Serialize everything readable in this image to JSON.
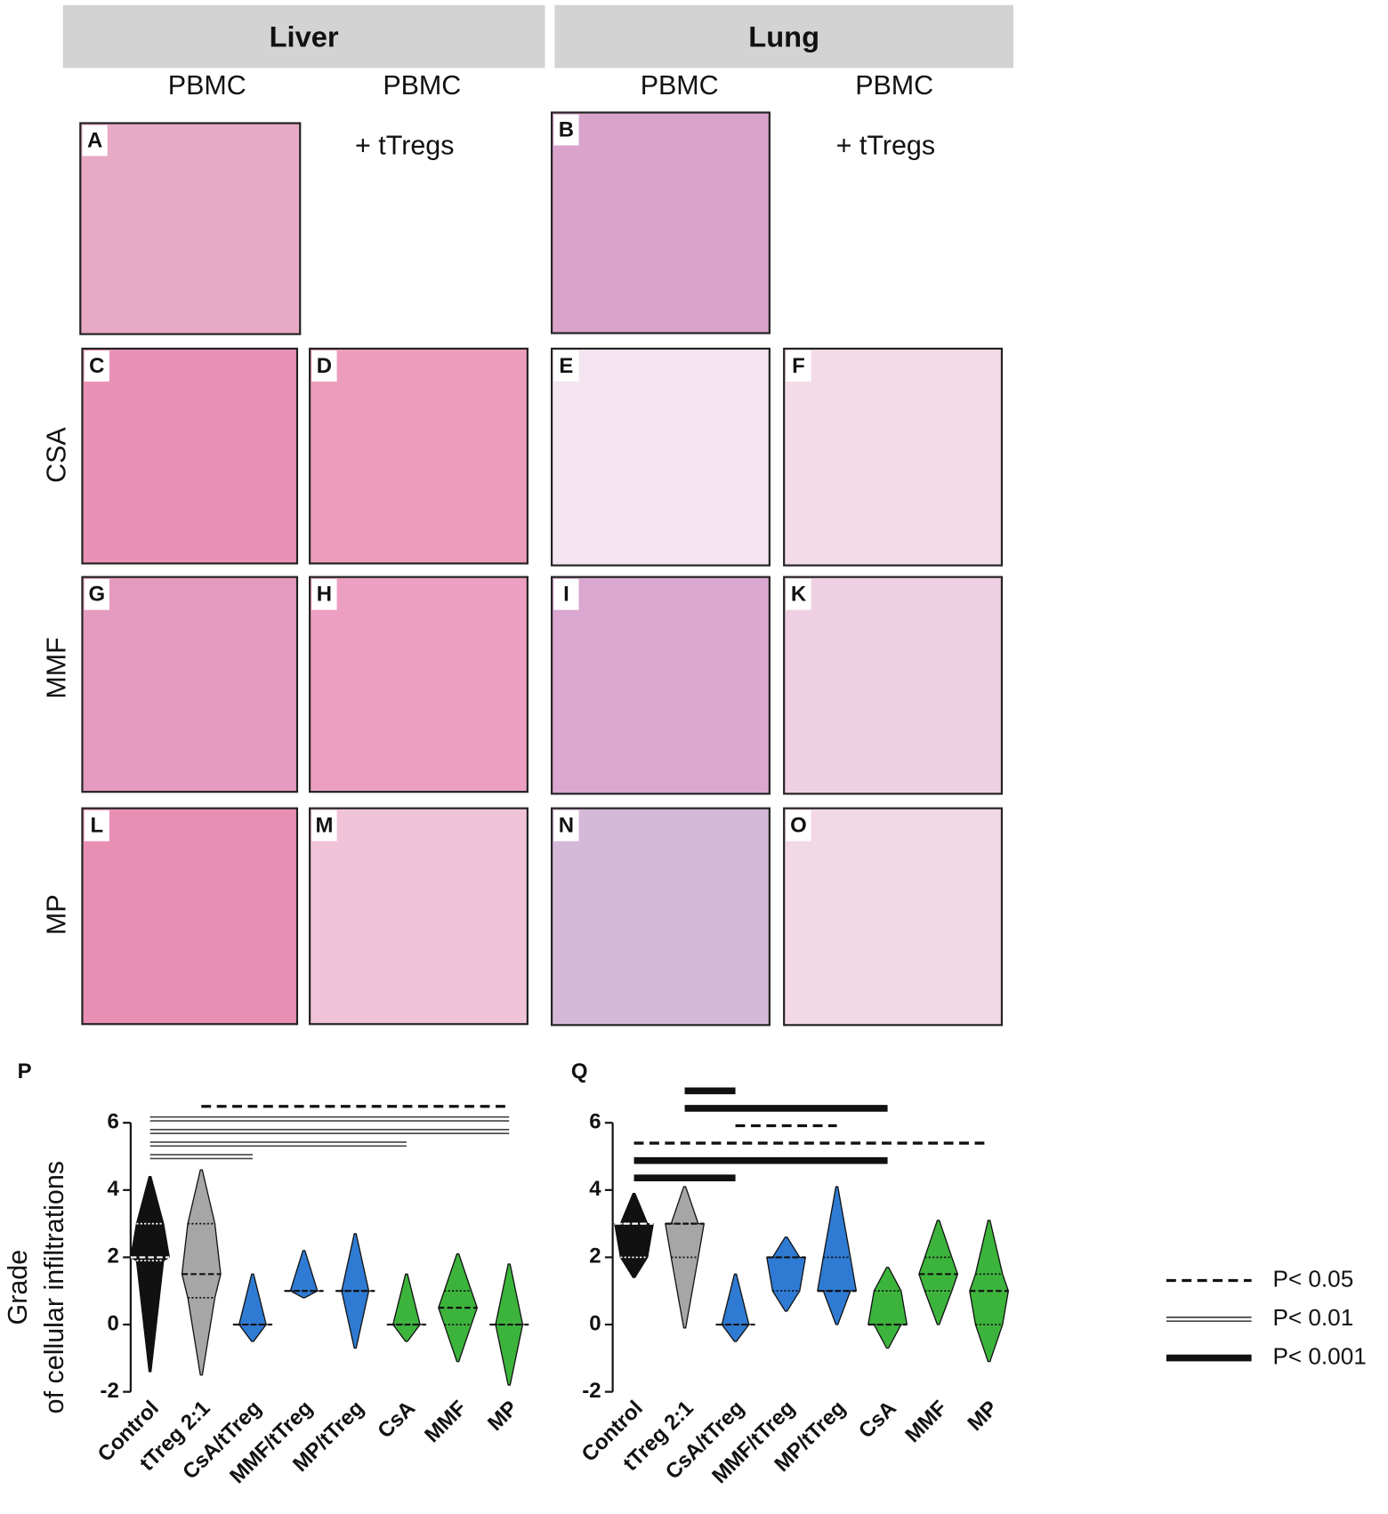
{
  "header": {
    "liver": "Liver",
    "lung": "Lung"
  },
  "column_labels": [
    "PBMC",
    "PBMC",
    "+ tTregs",
    "PBMC",
    "PBMC",
    "+ tTregs"
  ],
  "row_labels": [
    "CSA",
    "MMF",
    "MP"
  ],
  "panels": [
    "A",
    "B",
    "C",
    "D",
    "E",
    "F",
    "G",
    "H",
    "I",
    "K",
    "L",
    "M",
    "N",
    "O"
  ],
  "legend": [
    {
      "label": "P< 0.05",
      "style": "dashed"
    },
    {
      "label": "P< 0.01",
      "style": "double"
    },
    {
      "label": "P< 0.001",
      "style": "thick"
    }
  ],
  "chart_data": [
    {
      "type": "violin",
      "panel": "P",
      "y_label": [
        "Grade",
        "of cellular infiltrations"
      ],
      "categories": [
        "Control",
        "tTreg 2:1",
        "CsA/tTreg",
        "MMF/tTreg",
        "MP/tTreg",
        "CsA",
        "MMF",
        "MP"
      ],
      "colors": [
        "#111111",
        "#a6a6a6",
        "#2f7bd3",
        "#2f7bd3",
        "#2f7bd3",
        "#3cb43c",
        "#3cb43c",
        "#3cb43c"
      ],
      "min": [
        -1.4,
        -1.5,
        -0.5,
        0.8,
        -0.7,
        -0.5,
        -1.1,
        -1.8
      ],
      "q1": [
        1.9,
        0.8,
        0,
        1,
        1,
        0,
        0,
        0
      ],
      "median": [
        2,
        1.5,
        0,
        1,
        1,
        0,
        0.5,
        0
      ],
      "q3": [
        3,
        3,
        0,
        1,
        1,
        0,
        1,
        0
      ],
      "max": [
        4.4,
        4.6,
        1.5,
        2.2,
        2.7,
        1.5,
        2.1,
        1.8
      ],
      "ylim": [
        -2,
        6
      ],
      "yticks": [
        -2,
        0,
        2,
        4,
        6
      ],
      "comparisons": [
        {
          "from": "tTreg 2:1",
          "to": "MP",
          "level": "P< 0.05"
        },
        {
          "from": "Control",
          "to": "MP",
          "level": "P< 0.01"
        },
        {
          "from": "Control",
          "to": "MP",
          "level": "P< 0.01"
        },
        {
          "from": "Control",
          "to": "CsA",
          "level": "P< 0.01"
        },
        {
          "from": "Control",
          "to": "CsA/tTreg",
          "level": "P< 0.01"
        }
      ]
    },
    {
      "type": "violin",
      "panel": "Q",
      "categories": [
        "Control",
        "tTreg 2:1",
        "CsA/tTreg",
        "MMF/tTreg",
        "MP/tTreg",
        "CsA",
        "MMF",
        "MP"
      ],
      "colors": [
        "#111111",
        "#a6a6a6",
        "#2f7bd3",
        "#2f7bd3",
        "#2f7bd3",
        "#3cb43c",
        "#3cb43c",
        "#3cb43c"
      ],
      "min": [
        1.4,
        -0.1,
        -0.5,
        0.4,
        0,
        -0.7,
        0,
        -1.1
      ],
      "q1": [
        2,
        2,
        0,
        1,
        1,
        0,
        1,
        0
      ],
      "median": [
        3,
        3,
        0,
        2,
        1,
        0,
        1.5,
        1
      ],
      "q3": [
        3,
        3,
        0,
        2,
        2,
        1,
        2,
        1.5
      ],
      "max": [
        3.9,
        4.1,
        1.5,
        2.6,
        4.1,
        1.7,
        3.1,
        3.1
      ],
      "ylim": [
        -2,
        6
      ],
      "yticks": [
        -2,
        0,
        2,
        4,
        6
      ],
      "comparisons": [
        {
          "from": "tTreg 2:1",
          "to": "CsA/tTreg",
          "level": "P< 0.001"
        },
        {
          "from": "tTreg 2:1",
          "to": "CsA",
          "level": "P< 0.001"
        },
        {
          "from": "CsA/tTreg",
          "to": "MP/tTreg",
          "level": "P< 0.05"
        },
        {
          "from": "Control",
          "to": "MP",
          "level": "P< 0.05"
        },
        {
          "from": "Control",
          "to": "CsA",
          "level": "P< 0.001"
        },
        {
          "from": "Control",
          "to": "CsA/tTreg",
          "level": "P< 0.001"
        }
      ]
    }
  ]
}
